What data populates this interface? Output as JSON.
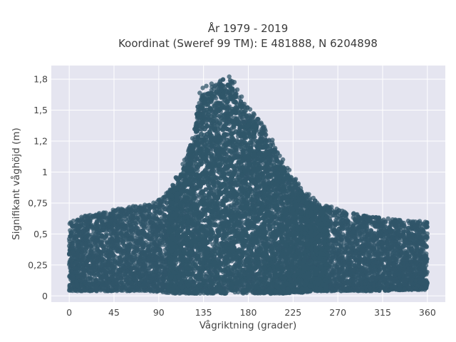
{
  "chart_data": {
    "type": "scatter",
    "title": [
      "År 1979 - 2019",
      "Koordinat (Sweref 99 TM): E 481888, N 6204898"
    ],
    "xlabel": "Vågriktning (grader)",
    "ylabel": "Signifikant våghöjd (m)",
    "xlim": [
      -18,
      378
    ],
    "ylim": [
      -0.05,
      1.86
    ],
    "x_ticks": [
      0,
      45,
      90,
      135,
      180,
      225,
      270,
      315,
      360
    ],
    "x_tick_labels": [
      "0",
      "45",
      "90",
      "135",
      "180",
      "225",
      "270",
      "315",
      "360"
    ],
    "y_ticks": [
      0,
      0.25,
      0.5,
      0.75,
      1,
      1.25,
      1.5,
      1.75
    ],
    "y_tick_labels": [
      "0",
      "0,25",
      "0,5",
      "0,75",
      "1",
      "1,2",
      "1,5",
      "1,8"
    ],
    "grid": true,
    "marker_color": "#305669",
    "background_color": "#e5e5f0",
    "envelope": {
      "x": [
        0,
        20,
        45,
        60,
        80,
        95,
        105,
        115,
        125,
        130,
        135,
        145,
        155,
        165,
        175,
        185,
        195,
        205,
        215,
        225,
        235,
        250,
        270,
        290,
        315,
        340,
        360
      ],
      "y_min": [
        0.04,
        0.04,
        0.04,
        0.04,
        0.04,
        0.03,
        0.02,
        0.02,
        0.02,
        0.02,
        0.02,
        0.02,
        0.02,
        0.02,
        0.02,
        0.02,
        0.02,
        0.02,
        0.02,
        0.03,
        0.03,
        0.04,
        0.04,
        0.04,
        0.04,
        0.05,
        0.05
      ],
      "y_max": [
        0.6,
        0.66,
        0.7,
        0.72,
        0.74,
        0.8,
        0.92,
        1.08,
        1.3,
        1.62,
        1.7,
        1.72,
        1.8,
        1.76,
        1.58,
        1.48,
        1.38,
        1.26,
        1.1,
        0.98,
        0.86,
        0.76,
        0.7,
        0.66,
        0.63,
        0.61,
        0.6
      ]
    }
  }
}
